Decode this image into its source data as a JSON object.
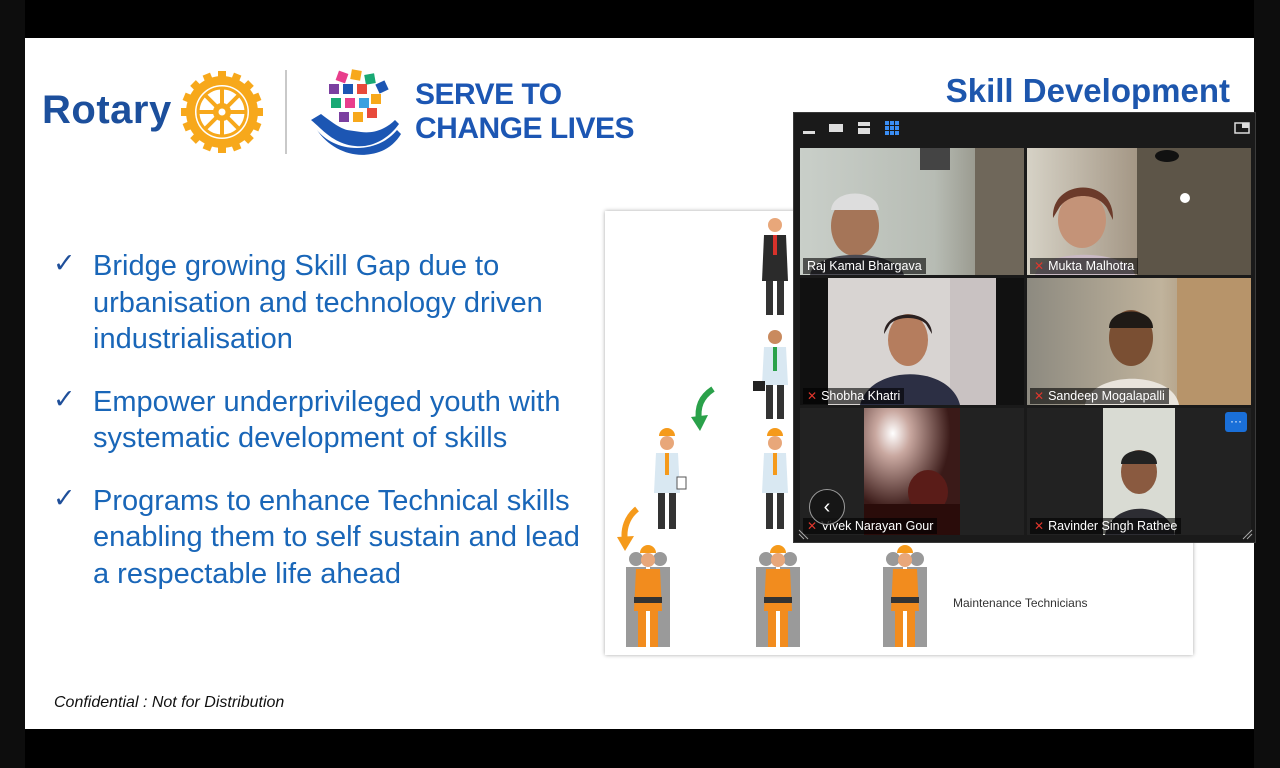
{
  "slide": {
    "logo_text": "Rotary",
    "tagline": [
      "SERVE TO",
      "CHANGE LIVES"
    ],
    "title": "Skill Development",
    "bullets": [
      "Bridge growing Skill Gap due to urbanisation and technology driven industrialisation",
      "Empower underprivileged youth with systematic development of skills",
      "Programs to enhance Technical skills enabling them to self sustain and lead a respectable life ahead"
    ],
    "footer": "Confidential : Not for Distribution",
    "diagram_label": "Maintenance Technicians"
  },
  "meeting": {
    "toolbar_icons": [
      "minimize-icon",
      "speaker-view-icon",
      "strip-view-icon",
      "gallery-view-icon",
      "exit-fullscreen-icon"
    ],
    "participants": [
      {
        "name": "Raj Kamal Bhargava",
        "muted": false
      },
      {
        "name": "Mukta Malhotra",
        "muted": true
      },
      {
        "name": "Shobha Khatri",
        "muted": true
      },
      {
        "name": "Sandeep Mogalapalli",
        "muted": true
      },
      {
        "name": "Vivek Narayan Gour",
        "muted": true
      },
      {
        "name": "Ravinder Singh Rathee",
        "muted": true
      }
    ],
    "more_label": "···",
    "prev_label": "‹"
  },
  "colors": {
    "rotary_blue": "#1c4f9c",
    "rotary_gold": "#f7a81b",
    "bullet_blue": "#1966b8",
    "zoom_blue": "#1a6fd8",
    "mute_red": "#e0362c"
  }
}
